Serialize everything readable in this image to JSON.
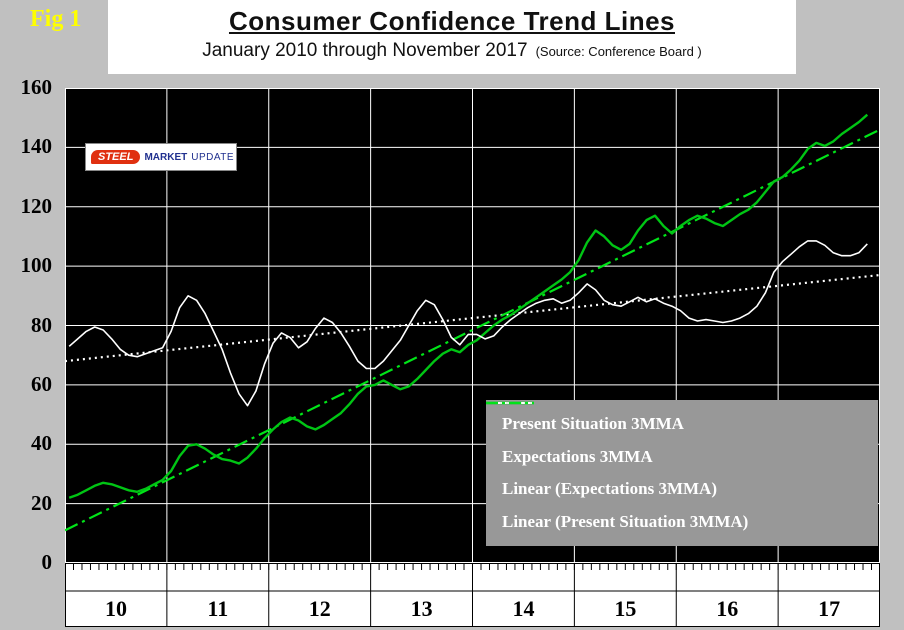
{
  "fig_label": "Fig 1",
  "title": "Consumer Confidence Trend Lines",
  "subtitle": "January 2010 through November 2017",
  "source": "(Source: Conference Board )",
  "logo": {
    "steel": "STEEL",
    "market": "MARKET",
    "update": "UPDATE"
  },
  "legend": [
    {
      "label": "Present Situation 3MMA",
      "style": "solid",
      "color": "#00c514"
    },
    {
      "label": "Expectations 3MMA",
      "style": "solid",
      "color": "#ffffff"
    },
    {
      "label": "Linear (Expectations 3MMA)",
      "style": "dotted",
      "color": "#ffffff"
    },
    {
      "label": "Linear (Present Situation 3MMA)",
      "style": "dashdot",
      "color": "#00e418"
    }
  ],
  "chart_data": {
    "type": "line",
    "title": "Consumer Confidence Trend Lines",
    "subtitle": "January 2010 through November 2017",
    "source": "Conference Board",
    "x_unit": "month",
    "x_start": "2010-01",
    "x_end": "2017-11",
    "year_labels": [
      "10",
      "11",
      "12",
      "13",
      "14",
      "15",
      "16",
      "17"
    ],
    "ylim": [
      0,
      160
    ],
    "yticks": [
      0,
      20,
      40,
      60,
      80,
      100,
      120,
      140,
      160
    ],
    "grid": true,
    "legend_position": "inside-bottom-right",
    "series": [
      {
        "name": "Present Situation 3MMA",
        "color": "#00c514",
        "values": [
          22,
          23,
          24.5,
          26,
          27,
          26.5,
          25.5,
          24.5,
          24,
          25,
          26.5,
          28,
          31,
          36,
          39.5,
          40,
          38.5,
          36.5,
          35,
          34.5,
          33.5,
          35.5,
          38.5,
          42,
          45,
          47.5,
          49,
          48,
          46,
          45,
          46.5,
          48.5,
          50.5,
          53.5,
          57,
          59.5,
          60,
          61.5,
          60,
          58.5,
          59.5,
          62,
          65,
          68,
          70.5,
          72,
          71,
          73.5,
          75,
          77.5,
          80,
          82,
          83.5,
          85.5,
          87.5,
          89.5,
          91.5,
          93.5,
          95.5,
          98,
          102,
          108,
          112,
          110,
          107,
          105.5,
          107.5,
          112,
          115.5,
          117,
          113.5,
          111,
          113.5,
          115.5,
          117,
          116,
          114.5,
          113.5,
          115.5,
          117.5,
          119,
          121.5,
          125,
          128.5,
          130,
          132.5,
          135.5,
          139.5,
          141.5,
          140.5,
          142,
          144.5,
          146.5,
          148.5,
          151
        ]
      },
      {
        "name": "Expectations 3MMA",
        "color": "#ffffff",
        "values": [
          73,
          75.5,
          78,
          79.5,
          78.5,
          75.5,
          72,
          70,
          69.5,
          70.5,
          71.5,
          72.5,
          78,
          86,
          90,
          88.5,
          84,
          78,
          72,
          64,
          57,
          53,
          58,
          67,
          74,
          77.5,
          76,
          72.5,
          74.5,
          79,
          82.5,
          81,
          77.5,
          73,
          68,
          65.5,
          65.5,
          68,
          71.5,
          75,
          80,
          85,
          88.5,
          87,
          82,
          76,
          73.5,
          77,
          77,
          75.5,
          76.5,
          79.5,
          82,
          84,
          86,
          87.5,
          88.5,
          89,
          87.5,
          88.5,
          91,
          94,
          92,
          88.5,
          87,
          86.5,
          88,
          89.5,
          88,
          89,
          87.5,
          86.5,
          85,
          82.5,
          81.5,
          82,
          81.5,
          81,
          81.5,
          82.5,
          84,
          86.5,
          91,
          98,
          101.5,
          104,
          106.5,
          108.5,
          108.5,
          107,
          104.5,
          103.5,
          103.5,
          104.5,
          107.5
        ]
      }
    ],
    "trendlines": [
      {
        "name": "Linear (Expectations 3MMA)",
        "color": "#ffffff",
        "dash": "dotted",
        "start": 68,
        "end": 97
      },
      {
        "name": "Linear (Present Situation 3MMA)",
        "color": "#00e418",
        "dash": "dashdot",
        "start": 11,
        "end": 146
      }
    ]
  }
}
